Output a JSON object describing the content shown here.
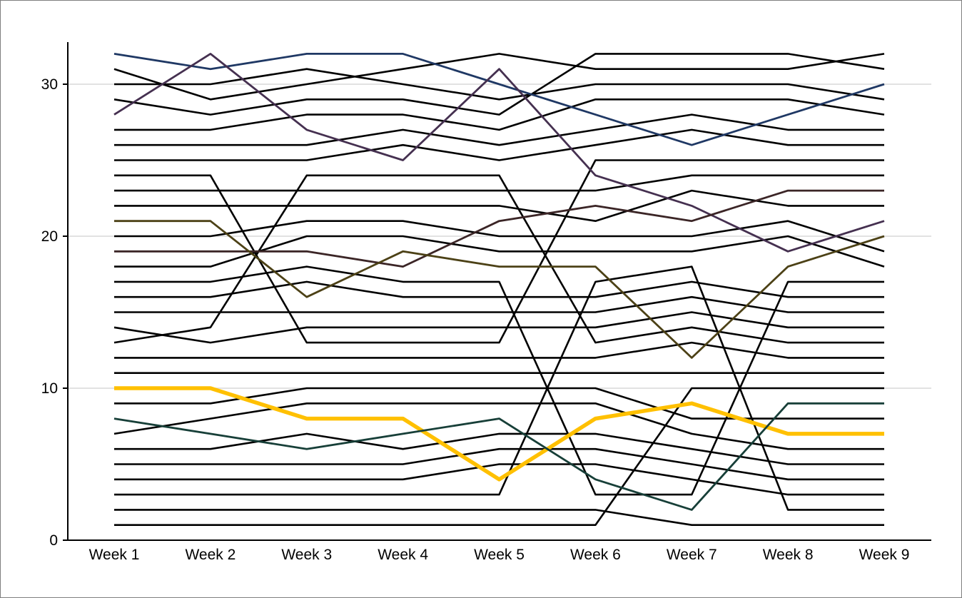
{
  "chart_data": {
    "type": "line",
    "subtype": "bump-rank-chart",
    "title": "",
    "xlabel": "",
    "ylabel": "",
    "categories": [
      "Week 1",
      "Week 2",
      "Week 3",
      "Week 4",
      "Week 5",
      "Week 6",
      "Week 7",
      "Week 8",
      "Week 9"
    ],
    "y_ticks": [
      0,
      10,
      20,
      30
    ],
    "ylim": [
      0,
      32.8
    ],
    "grid": "horizontal-gridlines-at-10-20-30",
    "legend": "none",
    "palette": {
      "black": "#000000",
      "navy": "#1F3864",
      "purple": "#453050",
      "dark_maroon": "#3B2526",
      "olive": "#4C4116",
      "teal": "#173F38",
      "highlight_gold": "#FFC000",
      "gridline": "#D9D9D9",
      "axis": "#000000",
      "label": "#000000",
      "border": "#7F7F7F"
    },
    "series": [
      {
        "id": "line-01",
        "color": "#000000",
        "width": 2.6,
        "highlight": false,
        "values": [
          30,
          30,
          31,
          30,
          29,
          30,
          30,
          30,
          29
        ]
      },
      {
        "id": "line-02",
        "color": "#000000",
        "width": 2.6,
        "highlight": false,
        "values": [
          31,
          29,
          30,
          31,
          32,
          31,
          31,
          31,
          32
        ]
      },
      {
        "id": "line-03",
        "color": "#000000",
        "width": 2.6,
        "highlight": false,
        "values": [
          29,
          28,
          29,
          29,
          28,
          32,
          32,
          32,
          31
        ]
      },
      {
        "id": "line-04",
        "color": "#000000",
        "width": 2.6,
        "highlight": false,
        "values": [
          27,
          27,
          28,
          28,
          27,
          29,
          29,
          29,
          28
        ]
      },
      {
        "id": "line-05",
        "color": "#000000",
        "width": 2.6,
        "highlight": false,
        "values": [
          26,
          26,
          26,
          27,
          26,
          27,
          28,
          27,
          27
        ]
      },
      {
        "id": "line-06",
        "color": "#000000",
        "width": 2.6,
        "highlight": false,
        "values": [
          25,
          25,
          25,
          26,
          25,
          26,
          27,
          26,
          26
        ]
      },
      {
        "id": "line-07",
        "color": "#000000",
        "width": 2.6,
        "highlight": false,
        "values": [
          24,
          24,
          13,
          13,
          13,
          25,
          25,
          25,
          25
        ]
      },
      {
        "id": "line-08",
        "color": "#000000",
        "width": 2.6,
        "highlight": false,
        "values": [
          23,
          23,
          23,
          23,
          23,
          23,
          24,
          24,
          24
        ]
      },
      {
        "id": "line-09",
        "color": "#000000",
        "width": 2.6,
        "highlight": false,
        "values": [
          22,
          22,
          22,
          22,
          22,
          21,
          23,
          22,
          22
        ]
      },
      {
        "id": "line-10",
        "color": "#000000",
        "width": 2.6,
        "highlight": false,
        "values": [
          20,
          20,
          21,
          21,
          20,
          20,
          20,
          21,
          19
        ]
      },
      {
        "id": "line-11",
        "color": "#000000",
        "width": 2.6,
        "highlight": false,
        "values": [
          18,
          18,
          20,
          20,
          19,
          19,
          19,
          20,
          18
        ]
      },
      {
        "id": "line-12",
        "color": "#000000",
        "width": 2.6,
        "highlight": false,
        "values": [
          17,
          17,
          18,
          17,
          17,
          3,
          3,
          17,
          17
        ]
      },
      {
        "id": "line-13",
        "color": "#000000",
        "width": 2.6,
        "highlight": false,
        "values": [
          16,
          16,
          17,
          16,
          16,
          16,
          17,
          16,
          16
        ]
      },
      {
        "id": "line-14",
        "color": "#000000",
        "width": 2.6,
        "highlight": false,
        "values": [
          15,
          15,
          15,
          15,
          15,
          15,
          16,
          15,
          15
        ]
      },
      {
        "id": "line-15",
        "color": "#000000",
        "width": 2.6,
        "highlight": false,
        "values": [
          14,
          13,
          14,
          14,
          14,
          14,
          15,
          14,
          14
        ]
      },
      {
        "id": "line-16",
        "color": "#000000",
        "width": 2.6,
        "highlight": false,
        "values": [
          13,
          14,
          24,
          24,
          24,
          13,
          14,
          13,
          13
        ]
      },
      {
        "id": "line-17",
        "color": "#000000",
        "width": 2.6,
        "highlight": false,
        "values": [
          12,
          12,
          12,
          12,
          12,
          12,
          13,
          12,
          12
        ]
      },
      {
        "id": "line-18",
        "color": "#000000",
        "width": 2.6,
        "highlight": false,
        "values": [
          11,
          11,
          11,
          11,
          11,
          11,
          11,
          11,
          11
        ]
      },
      {
        "id": "line-19",
        "color": "#000000",
        "width": 2.6,
        "highlight": false,
        "values": [
          9,
          9,
          10,
          10,
          10,
          10,
          8,
          8,
          8
        ]
      },
      {
        "id": "line-20",
        "color": "#000000",
        "width": 2.6,
        "highlight": false,
        "values": [
          7,
          8,
          9,
          9,
          9,
          9,
          7,
          6,
          6
        ]
      },
      {
        "id": "line-21",
        "color": "#000000",
        "width": 2.6,
        "highlight": false,
        "values": [
          6,
          6,
          7,
          6,
          7,
          7,
          6,
          5,
          5
        ]
      },
      {
        "id": "line-22",
        "color": "#000000",
        "width": 2.6,
        "highlight": false,
        "values": [
          5,
          5,
          5,
          5,
          6,
          6,
          5,
          4,
          4
        ]
      },
      {
        "id": "line-23",
        "color": "#000000",
        "width": 2.6,
        "highlight": false,
        "values": [
          4,
          4,
          4,
          4,
          5,
          5,
          4,
          3,
          3
        ]
      },
      {
        "id": "line-24",
        "color": "#000000",
        "width": 2.6,
        "highlight": false,
        "values": [
          3,
          3,
          3,
          3,
          3,
          17,
          18,
          2,
          2
        ]
      },
      {
        "id": "line-25",
        "color": "#000000",
        "width": 2.6,
        "highlight": false,
        "values": [
          2,
          2,
          2,
          2,
          2,
          2,
          1,
          1,
          1
        ]
      },
      {
        "id": "line-26",
        "color": "#000000",
        "width": 2.6,
        "highlight": false,
        "values": [
          1,
          1,
          1,
          1,
          1,
          1,
          10,
          10,
          10
        ]
      },
      {
        "id": "line-27-highlight",
        "color": "#FFC000",
        "width": 5.5,
        "highlight": true,
        "values": [
          10,
          10,
          8,
          8,
          4,
          8,
          9,
          7,
          7
        ]
      },
      {
        "id": "line-28-navy",
        "color": "#1F3864",
        "width": 2.8,
        "highlight": false,
        "values": [
          32,
          31,
          32,
          32,
          30,
          28,
          26,
          28,
          30
        ]
      },
      {
        "id": "line-29-purple",
        "color": "#453050",
        "width": 2.8,
        "highlight": false,
        "values": [
          28,
          32,
          27,
          25,
          31,
          24,
          22,
          19,
          21
        ]
      },
      {
        "id": "line-30-darkmaroon",
        "color": "#3B2526",
        "width": 2.8,
        "highlight": false,
        "values": [
          19,
          19,
          19,
          18,
          21,
          22,
          21,
          23,
          23
        ]
      },
      {
        "id": "line-31-olive",
        "color": "#4C4116",
        "width": 2.8,
        "highlight": false,
        "values": [
          21,
          21,
          16,
          19,
          18,
          18,
          12,
          18,
          20
        ]
      },
      {
        "id": "line-32-teal",
        "color": "#173F38",
        "width": 2.8,
        "highlight": false,
        "values": [
          8,
          7,
          6,
          7,
          8,
          4,
          2,
          9,
          9
        ]
      }
    ]
  },
  "axes": {
    "x_labels": [
      "Week 1",
      "Week 2",
      "Week 3",
      "Week 4",
      "Week 5",
      "Week 6",
      "Week 7",
      "Week 8",
      "Week 9"
    ],
    "y_labels": [
      "0",
      "10",
      "20",
      "30"
    ]
  }
}
